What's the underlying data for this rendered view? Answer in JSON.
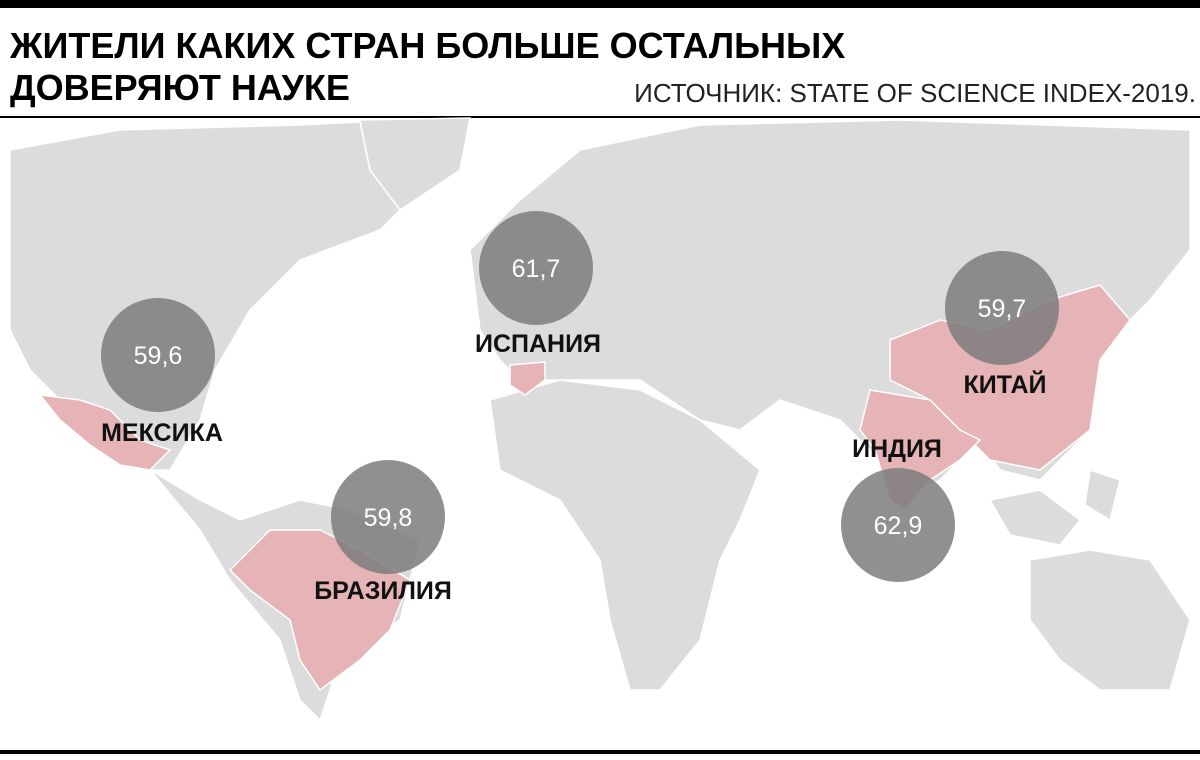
{
  "header": {
    "title_lines": [
      "ЖИТЕЛИ КАКИХ СТРАН БОЛЬШЕ ОСТАЛЬНЫХ",
      "ДОВЕРЯЮТ НАУКЕ"
    ],
    "source": "ИСТОЧНИК: STATE OF SCIENCE INDEX-2019."
  },
  "countries": [
    {
      "name": "МЕКСИКА",
      "value": 59.6,
      "value_label": "59,6"
    },
    {
      "name": "ИСПАНИЯ",
      "value": 61.7,
      "value_label": "61,7"
    },
    {
      "name": "КИТАЙ",
      "value": 59.7,
      "value_label": "59,7"
    },
    {
      "name": "БРАЗИЛИЯ",
      "value": 59.8,
      "value_label": "59,8"
    },
    {
      "name": "ИНДИЯ",
      "value": 62.9,
      "value_label": "62,9"
    }
  ]
}
